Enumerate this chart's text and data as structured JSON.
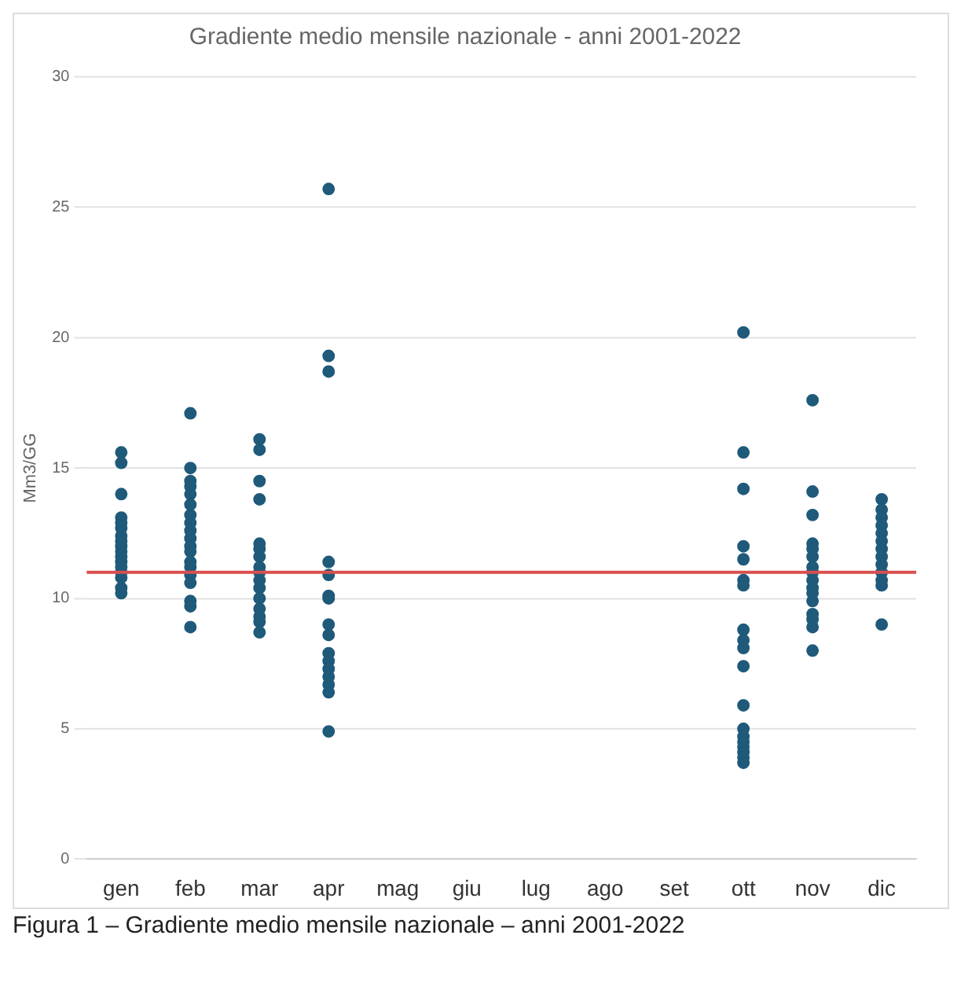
{
  "chart_data": {
    "type": "scatter",
    "title": "Gradiente medio mensile nazionale - anni 2001-2022",
    "ylabel": "Mm3/GG",
    "categories": [
      "gen",
      "feb",
      "mar",
      "apr",
      "mag",
      "giu",
      "lug",
      "ago",
      "set",
      "ott",
      "nov",
      "dic"
    ],
    "series": [
      {
        "color": "#1f5a7a",
        "x": [
          "gen",
          "gen",
          "gen",
          "gen",
          "gen",
          "gen",
          "gen",
          "gen",
          "gen",
          "gen",
          "gen",
          "gen",
          "gen",
          "gen",
          "gen",
          "gen",
          "gen",
          "feb",
          "feb",
          "feb",
          "feb",
          "feb",
          "feb",
          "feb",
          "feb",
          "feb",
          "feb",
          "feb",
          "feb",
          "feb",
          "feb",
          "feb",
          "feb",
          "feb",
          "feb",
          "feb",
          "mar",
          "mar",
          "mar",
          "mar",
          "mar",
          "mar",
          "mar",
          "mar",
          "mar",
          "mar",
          "mar",
          "mar",
          "mar",
          "mar",
          "mar",
          "mar",
          "apr",
          "apr",
          "apr",
          "apr",
          "apr",
          "apr",
          "apr",
          "apr",
          "apr",
          "apr",
          "apr",
          "apr",
          "apr",
          "apr",
          "apr",
          "apr",
          "ott",
          "ott",
          "ott",
          "ott",
          "ott",
          "ott",
          "ott",
          "ott",
          "ott",
          "ott",
          "ott",
          "ott",
          "ott",
          "ott",
          "ott",
          "ott",
          "ott",
          "ott",
          "ott",
          "nov",
          "nov",
          "nov",
          "nov",
          "nov",
          "nov",
          "nov",
          "nov",
          "nov",
          "nov",
          "nov",
          "nov",
          "nov",
          "nov",
          "nov",
          "nov",
          "dic",
          "dic",
          "dic",
          "dic",
          "dic",
          "dic",
          "dic",
          "dic",
          "dic",
          "dic",
          "dic",
          "dic",
          "dic"
        ],
        "values": [
          15.6,
          15.2,
          14.0,
          13.1,
          12.9,
          12.7,
          12.4,
          12.2,
          12.0,
          11.8,
          11.6,
          11.4,
          11.2,
          11.0,
          10.8,
          10.4,
          10.2,
          17.1,
          15.0,
          14.5,
          14.3,
          14.0,
          13.6,
          13.2,
          12.9,
          12.6,
          12.3,
          12.0,
          11.8,
          11.4,
          11.2,
          10.9,
          10.6,
          9.9,
          9.7,
          8.9,
          16.1,
          15.7,
          14.5,
          13.8,
          12.1,
          11.9,
          11.6,
          11.2,
          11.0,
          10.7,
          10.4,
          10.0,
          9.6,
          9.3,
          9.1,
          8.7,
          25.7,
          19.3,
          18.7,
          11.4,
          10.9,
          10.1,
          10.0,
          9.0,
          8.6,
          7.9,
          7.6,
          7.3,
          7.0,
          6.7,
          6.4,
          4.9,
          20.2,
          15.6,
          14.2,
          12.0,
          11.5,
          10.7,
          10.5,
          8.8,
          8.4,
          8.1,
          7.4,
          5.9,
          5.0,
          4.7,
          4.5,
          4.3,
          4.1,
          3.9,
          3.7,
          17.6,
          14.1,
          13.2,
          12.1,
          11.9,
          11.6,
          11.2,
          11.0,
          10.7,
          10.4,
          10.2,
          9.9,
          9.4,
          9.2,
          8.9,
          8.0,
          13.8,
          13.4,
          13.1,
          12.8,
          12.5,
          12.2,
          11.9,
          11.6,
          11.3,
          11.0,
          10.7,
          10.5,
          9.0
        ]
      }
    ],
    "ylim": [
      0,
      30
    ],
    "yticks": [
      0,
      5,
      10,
      15,
      20,
      25,
      30
    ],
    "grid": "y",
    "legend": false,
    "marker": "circle",
    "ref_lines": [
      {
        "axis": "y",
        "value": 11.0,
        "color": "#d9504f"
      }
    ],
    "annotations": [
      "Figura 1 – Gradiente medio mensile nazionale – anni 2001-2022"
    ]
  }
}
